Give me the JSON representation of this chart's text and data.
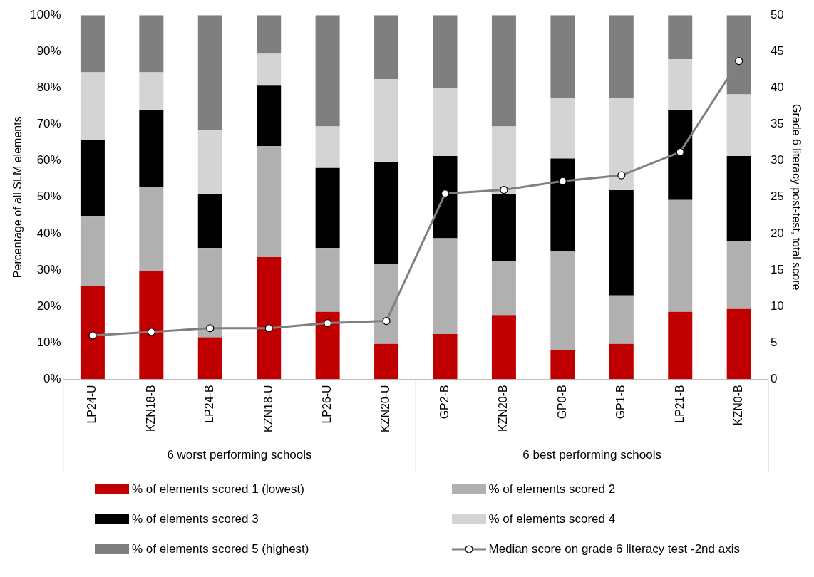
{
  "chart_data": {
    "type": "bar",
    "stacked": true,
    "categories": [
      "LP24-U",
      "KZN18-B",
      "LP24-B",
      "KZN18-U",
      "LP26-U",
      "KZN20-U",
      "GP2-B",
      "KZN20-B",
      "GP0-B",
      "GP1-B",
      "LP21-B",
      "KZN0-B"
    ],
    "annotations": [
      "6 worst performing schools",
      "6 best performing schools"
    ],
    "ylabel": "Percentage of all SLM elements",
    "y2label": "Grade 6 literacy post-test, total score",
    "ylim": [
      0,
      100
    ],
    "yticks": [
      {
        "value": 0,
        "label": "0%"
      },
      {
        "value": 10,
        "label": "10%"
      },
      {
        "value": 20,
        "label": "20%"
      },
      {
        "value": 30,
        "label": "30%"
      },
      {
        "value": 40,
        "label": "40%"
      },
      {
        "value": 50,
        "label": "50%"
      },
      {
        "value": 60,
        "label": "60%"
      },
      {
        "value": 70,
        "label": "70%"
      },
      {
        "value": 80,
        "label": "80%"
      },
      {
        "value": 90,
        "label": "90%"
      },
      {
        "value": 100,
        "label": "100%"
      }
    ],
    "y2lim": [
      0,
      50
    ],
    "y2ticks": [
      0,
      5,
      10,
      15,
      20,
      25,
      30,
      35,
      40,
      45,
      50
    ],
    "legend": "bottom",
    "grid": false,
    "series": [
      {
        "name": "% of elements scored 1 (lowest)",
        "color": "#c00000",
        "values": [
          25.5,
          29.8,
          11.5,
          33.5,
          18.5,
          9.7,
          12.4,
          17.6,
          8,
          9.7,
          18.5,
          19.3
        ]
      },
      {
        "name": "% of elements scored 2",
        "color": "#b0b0b0",
        "values": [
          19.3,
          23,
          24.5,
          30.5,
          17.5,
          22,
          26.3,
          14.9,
          27.2,
          13.3,
          30.7,
          18.6
        ]
      },
      {
        "name": "% of elements scored 3",
        "color": "#000000",
        "values": [
          20.9,
          21,
          14.8,
          16.6,
          22,
          27.9,
          22.6,
          18.3,
          25.4,
          28.9,
          24.6,
          23.4
        ]
      },
      {
        "name": "% of elements scored 4",
        "color": "#d4d4d4",
        "values": [
          18.6,
          10.5,
          17.5,
          8.8,
          11.4,
          22.8,
          18.7,
          18.6,
          16.7,
          25.4,
          14.1,
          16.9
        ]
      },
      {
        "name": "% of elements scored 5 (highest)",
        "color": "#7f7f7f",
        "values": [
          15.7,
          15.7,
          31.7,
          10.6,
          30.6,
          17.6,
          20,
          30.6,
          22.7,
          22.7,
          12.1,
          21.8
        ]
      },
      {
        "name": "Median score on grade 6 literacy test -2nd axis",
        "type": "line",
        "axis": "y2",
        "color": "#808080",
        "marker": "circle",
        "values": [
          6,
          6.5,
          7,
          7,
          7.7,
          8,
          25.5,
          26,
          27.2,
          28,
          31.2,
          43.7
        ]
      }
    ]
  }
}
